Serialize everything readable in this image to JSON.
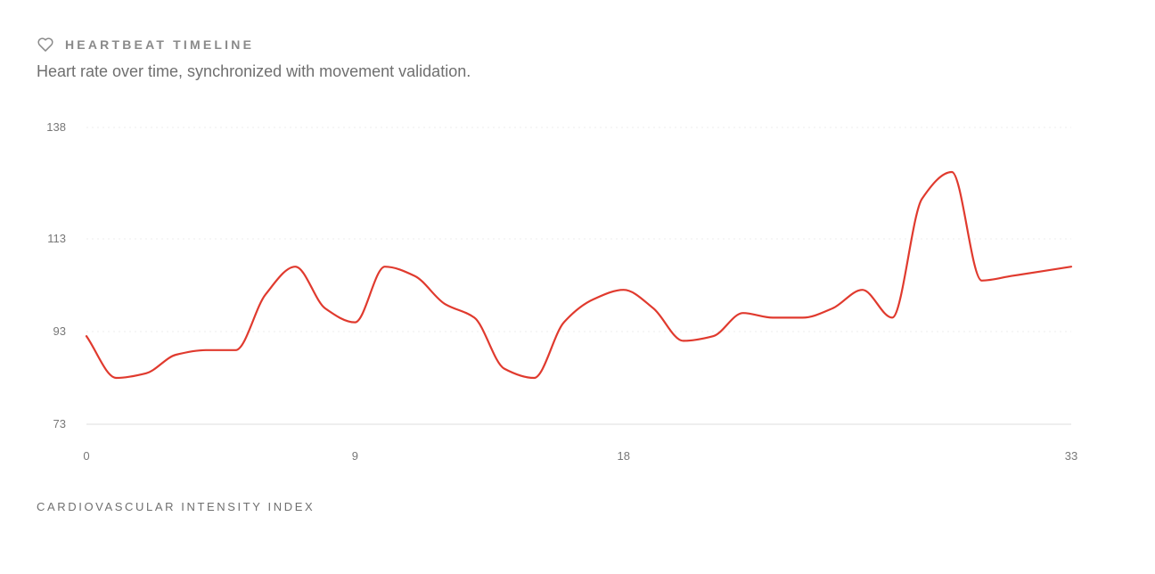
{
  "header": {
    "icon": "heart-icon",
    "title": "HEARTBEAT TIMELINE",
    "subtitle": "Heart rate over time, synchronized with movement validation."
  },
  "footer": {
    "label": "CARDIOVASCULAR INTENSITY INDEX"
  },
  "colors": {
    "line": "#e03a2e",
    "grid": "#ececec",
    "axis": "#dddddd",
    "text": "#777777"
  },
  "chart_data": {
    "type": "line",
    "title": "HEARTBEAT TIMELINE",
    "subtitle": "Heart rate over time, synchronized with movement validation.",
    "xlabel": "",
    "ylabel": "",
    "xlim": [
      0,
      33
    ],
    "ylim": [
      73,
      138
    ],
    "x_ticks": [
      0,
      9,
      18,
      33
    ],
    "y_ticks": [
      73,
      93,
      113,
      138
    ],
    "grid": "horizontal-dotted",
    "legend": "none",
    "series": [
      {
        "x": [
          0,
          1,
          2,
          3,
          4,
          5,
          6,
          7,
          8,
          9,
          10,
          11,
          12,
          13,
          14,
          15,
          16,
          17,
          18,
          19,
          20,
          21,
          22,
          23,
          24,
          25,
          26,
          27,
          28,
          29,
          30,
          31,
          32,
          33
        ],
        "values": [
          92,
          83,
          84,
          88,
          89,
          89,
          101,
          107,
          98,
          95,
          107,
          105,
          99,
          96,
          85,
          83,
          95,
          100,
          102,
          98,
          91,
          92,
          97,
          96,
          96,
          98,
          102,
          96,
          122,
          128,
          104,
          105,
          106,
          107
        ]
      }
    ]
  }
}
